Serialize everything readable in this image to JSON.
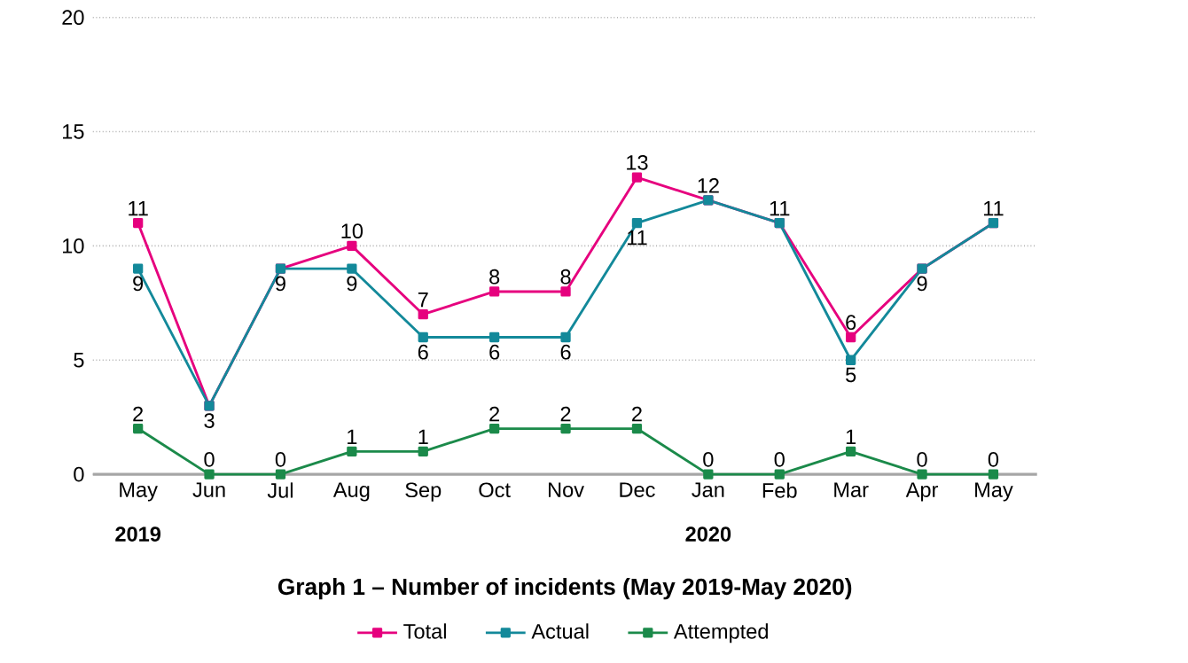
{
  "chart_data": {
    "type": "line",
    "title": "Graph 1 – Number of incidents (May 2019-May 2020)",
    "x": [
      "2019-05",
      "2019-06",
      "2019-07",
      "2019-08",
      "2019-09",
      "2019-10",
      "2019-11",
      "2019-12",
      "2020-01",
      "2020-02",
      "2020-03",
      "2020-04",
      "2020-05"
    ],
    "xticks": [
      {
        "value": "2019-05",
        "label": "May"
      },
      {
        "value": "2019-06",
        "label": "Jun"
      },
      {
        "value": "2019-07",
        "label": "Jul"
      },
      {
        "value": "2019-08",
        "label": "Aug"
      },
      {
        "value": "2019-09",
        "label": "Sep"
      },
      {
        "value": "2019-10",
        "label": "Oct"
      },
      {
        "value": "2019-11",
        "label": "Nov"
      },
      {
        "value": "2019-12",
        "label": "Dec"
      },
      {
        "value": "2020-01",
        "label": "Jan"
      },
      {
        "value": "2020-02",
        "label": "Feb"
      },
      {
        "value": "2020-03",
        "label": "Mar"
      },
      {
        "value": "2020-04",
        "label": "Apr"
      },
      {
        "value": "2020-05",
        "label": "May"
      }
    ],
    "xlim": [
      "2019-04-12",
      "2020-05-20"
    ],
    "ylim": [
      0,
      20
    ],
    "yticks": [
      0,
      5,
      10,
      15,
      20
    ],
    "grid": "y",
    "legend": "bottom",
    "marker": "square",
    "line_style": "solid",
    "annotations": [
      "2019",
      "2020"
    ],
    "series": [
      {
        "name": "Total",
        "color": "#e6007e",
        "values": [
          11,
          3,
          9,
          10,
          7,
          8,
          8,
          13,
          12,
          11,
          6,
          9,
          11
        ],
        "value_labels": [
          "11",
          null,
          null,
          "10",
          "7",
          "8",
          "8",
          "13",
          "12",
          "11",
          "6",
          null,
          "11"
        ]
      },
      {
        "name": "Actual",
        "color": "#13899a",
        "values": [
          9,
          3,
          9,
          9,
          6,
          6,
          6,
          11,
          12,
          11,
          5,
          9,
          11
        ],
        "value_labels": [
          "9",
          "3",
          "9",
          "9",
          "6",
          "6",
          "6",
          "11",
          null,
          null,
          "5",
          "9",
          null
        ]
      },
      {
        "name": "Attempted",
        "color": "#1b8a4a",
        "values": [
          2,
          0,
          0,
          1,
          1,
          2,
          2,
          2,
          0,
          0,
          1,
          0,
          0
        ],
        "value_labels": [
          "2",
          "0",
          "0",
          "1",
          "1",
          "2",
          "2",
          "2",
          "0",
          "0",
          "1",
          "0",
          "0"
        ]
      }
    ]
  }
}
